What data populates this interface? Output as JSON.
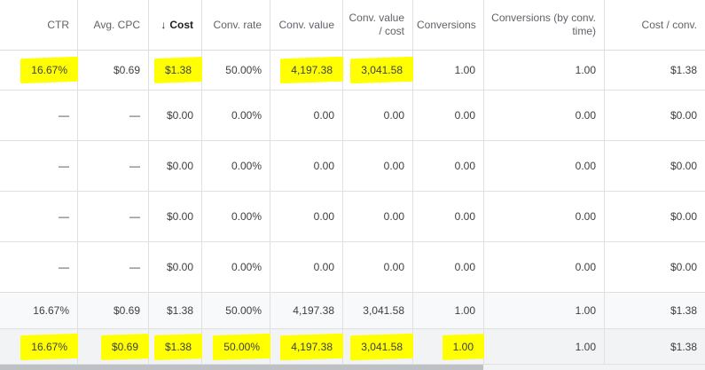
{
  "columns": [
    {
      "label": "CTR"
    },
    {
      "label": "Avg. CPC"
    },
    {
      "label": "Cost",
      "sort_icon": "arrow-down-icon"
    },
    {
      "label": "Conv. rate"
    },
    {
      "label": "Conv. value"
    },
    {
      "label": "Conv. value / cost"
    },
    {
      "label": "Conversions"
    },
    {
      "label": "Conversions (by conv. time)"
    },
    {
      "label": "Cost / conv."
    }
  ],
  "rows": [
    [
      "16.67%",
      "$0.69",
      "$1.38",
      "50.00%",
      "4,197.38",
      "3,041.58",
      "1.00",
      "1.00",
      "$1.38"
    ],
    [
      "—",
      "—",
      "$0.00",
      "0.00%",
      "0.00",
      "0.00",
      "0.00",
      "0.00",
      "$0.00"
    ],
    [
      "—",
      "—",
      "$0.00",
      "0.00%",
      "0.00",
      "0.00",
      "0.00",
      "0.00",
      "$0.00"
    ],
    [
      "—",
      "—",
      "$0.00",
      "0.00%",
      "0.00",
      "0.00",
      "0.00",
      "0.00",
      "$0.00"
    ],
    [
      "—",
      "—",
      "$0.00",
      "0.00%",
      "0.00",
      "0.00",
      "0.00",
      "0.00",
      "$0.00"
    ]
  ],
  "summary_rows": [
    [
      "16.67%",
      "$0.69",
      "$1.38",
      "50.00%",
      "4,197.38",
      "3,041.58",
      "1.00",
      "1.00",
      "$1.38"
    ],
    [
      "16.67%",
      "$0.69",
      "$1.38",
      "50.00%",
      "4,197.38",
      "3,041.58",
      "1.00",
      "1.00",
      "$1.38"
    ]
  ],
  "highlight_color": "#ffff00"
}
